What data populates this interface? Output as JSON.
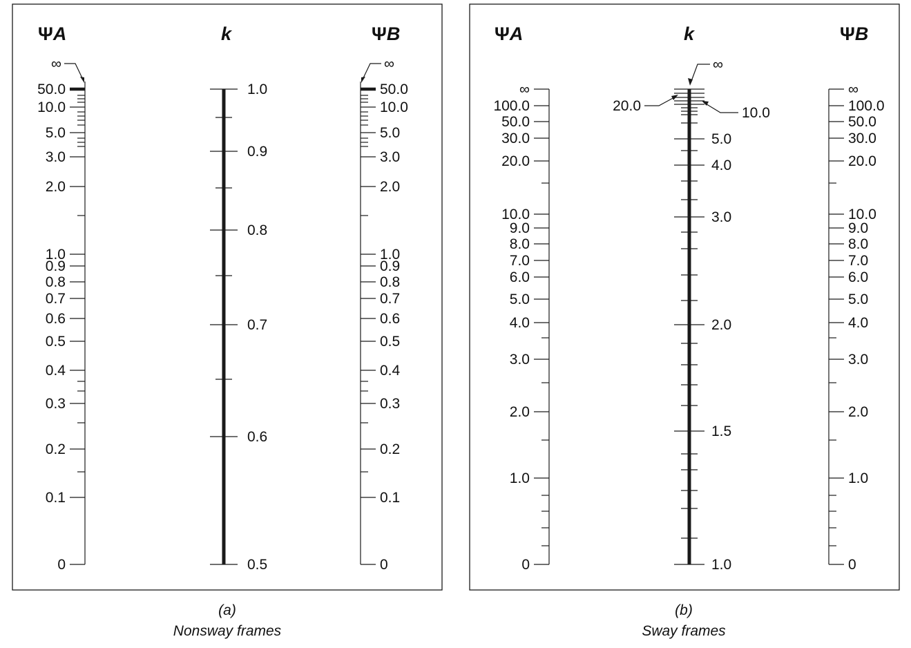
{
  "panels": [
    {
      "caption_letter": "(a)",
      "caption_text": "Nonsway frames",
      "headers": {
        "psi_symbol": "Ψ",
        "left_sub": "A",
        "center": "k",
        "right_sub": "B"
      },
      "psi_scale": {
        "infinity_label": "∞",
        "labels": [
          "50.0",
          "10.0",
          "5.0",
          "3.0",
          "2.0",
          "1.0",
          "0.9",
          "0.8",
          "0.7",
          "0.6",
          "0.5",
          "0.4",
          "0.3",
          "0.2",
          "0.1",
          "0"
        ]
      },
      "k_scale": {
        "labels": [
          "1.0",
          "0.9",
          "0.8",
          "0.7",
          "0.6",
          "0.5"
        ]
      }
    },
    {
      "caption_letter": "(b)",
      "caption_text": "Sway frames",
      "headers": {
        "psi_symbol": "Ψ",
        "left_sub": "A",
        "center": "k",
        "right_sub": "B"
      },
      "psi_scale": {
        "labels": [
          "∞",
          "100.0",
          "50.0",
          "30.0",
          "20.0",
          "10.0",
          "9.0",
          "8.0",
          "7.0",
          "6.0",
          "5.0",
          "4.0",
          "3.0",
          "2.0",
          "1.0",
          "0"
        ]
      },
      "k_scale": {
        "infinity_label": "∞",
        "callout_left": "20.0",
        "callout_right": "10.0",
        "labels": [
          "5.0",
          "4.0",
          "3.0",
          "2.0",
          "1.5",
          "1.0"
        ]
      }
    }
  ]
}
